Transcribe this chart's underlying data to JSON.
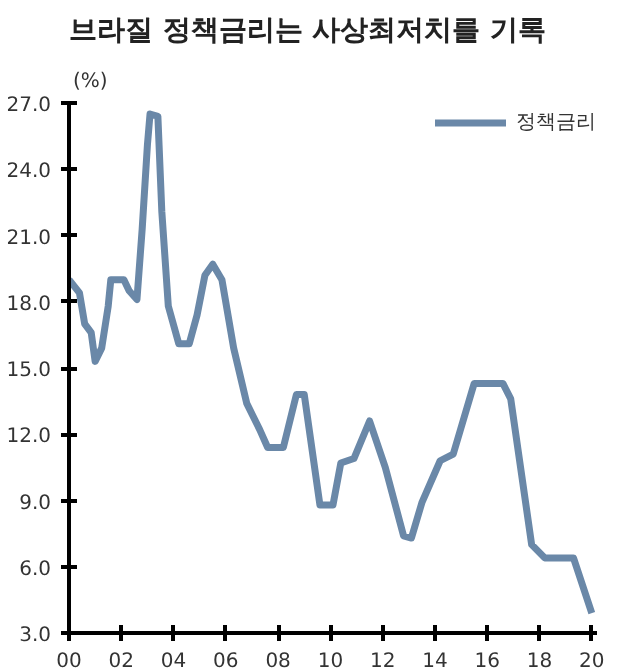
{
  "chart_data": {
    "type": "line",
    "title": "브라질 정책금리는 사상최저치를 기록",
    "ylabel": "(%)",
    "x": [
      2000.0,
      2000.4,
      2000.6,
      2000.85,
      2001.0,
      2001.25,
      2001.5,
      2001.6,
      2002.1,
      2002.3,
      2002.6,
      2002.8,
      2003.0,
      2003.1,
      2003.4,
      2003.55,
      2003.8,
      2004.2,
      2004.6,
      2004.9,
      2005.2,
      2005.5,
      2005.85,
      2006.3,
      2006.8,
      2007.3,
      2007.6,
      2008.2,
      2008.7,
      2009.0,
      2009.6,
      2010.1,
      2010.4,
      2010.9,
      2011.5,
      2012.1,
      2012.8,
      2013.1,
      2013.5,
      2014.2,
      2014.7,
      2015.5,
      2016.6,
      2016.9,
      2017.7,
      2018.2,
      2019.3,
      2020.0
    ],
    "series": [
      {
        "name": "정책금리",
        "color": "#6a88a8",
        "values": [
          19.0,
          18.4,
          17.0,
          16.6,
          15.3,
          15.9,
          17.8,
          19.0,
          19.0,
          18.5,
          18.1,
          21.3,
          25.1,
          26.5,
          26.4,
          22.1,
          17.8,
          16.1,
          16.1,
          17.4,
          19.2,
          19.7,
          19.0,
          15.9,
          13.4,
          12.2,
          11.4,
          11.4,
          13.8,
          13.8,
          8.8,
          8.8,
          10.7,
          10.9,
          12.6,
          10.5,
          7.4,
          7.3,
          8.9,
          10.8,
          11.1,
          14.3,
          14.3,
          13.6,
          7.0,
          6.4,
          6.4,
          3.9
        ]
      }
    ],
    "xlim": [
      2000,
      2020.2
    ],
    "xticks": [
      {
        "value": 2000,
        "label": "00"
      },
      {
        "value": 2002,
        "label": "02"
      },
      {
        "value": 2004,
        "label": "04"
      },
      {
        "value": 2006,
        "label": "06"
      },
      {
        "value": 2008,
        "label": "08"
      },
      {
        "value": 2010,
        "label": "10"
      },
      {
        "value": 2012,
        "label": "12"
      },
      {
        "value": 2014,
        "label": "14"
      },
      {
        "value": 2016,
        "label": "16"
      },
      {
        "value": 2018,
        "label": "18"
      },
      {
        "value": 2020,
        "label": "20"
      }
    ],
    "ylim": [
      3.0,
      27.0
    ],
    "yticks": [
      {
        "value": 3,
        "label": "3.0"
      },
      {
        "value": 6,
        "label": "6.0"
      },
      {
        "value": 9,
        "label": "9.0"
      },
      {
        "value": 12,
        "label": "12.0"
      },
      {
        "value": 15,
        "label": "15.0"
      },
      {
        "value": 18,
        "label": "18.0"
      },
      {
        "value": 21,
        "label": "21.0"
      },
      {
        "value": 24,
        "label": "24.0"
      },
      {
        "value": 27,
        "label": "27.0"
      }
    ],
    "grid": false,
    "legend": "top right",
    "line_style": "solid",
    "marker": "none"
  }
}
